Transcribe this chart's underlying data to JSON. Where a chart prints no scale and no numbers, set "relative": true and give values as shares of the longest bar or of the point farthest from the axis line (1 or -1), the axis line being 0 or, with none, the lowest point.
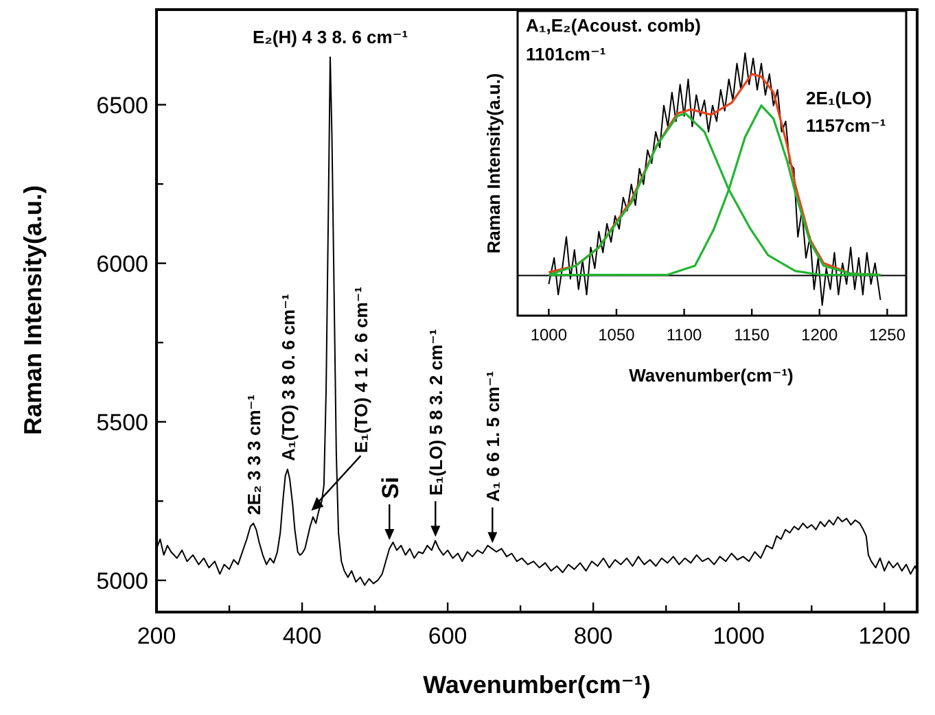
{
  "chart_data": [
    {
      "type": "line",
      "xlabel": "Wavenumber(cm⁻¹)",
      "ylabel": "Raman Intensity(a.u.)",
      "xlim": [
        200,
        1245
      ],
      "ylim": [
        4900,
        6800
      ],
      "xticks": [
        200,
        {
          "value": 300,
          "label": null
        },
        400,
        {
          "value": 500,
          "label": null
        },
        600,
        {
          "value": 700,
          "label": null
        },
        800,
        {
          "value": 900,
          "label": null
        },
        1000,
        {
          "value": 1100,
          "label": null
        },
        1200
      ],
      "yticks": [
        5000,
        {
          "value": 5250,
          "label": null
        },
        5500,
        {
          "value": 5750,
          "label": null
        },
        6000,
        {
          "value": 6250,
          "label": null
        },
        6500
      ],
      "annotations": [
        {
          "text": "E₂(H)  4 3 8. 6 cm⁻¹",
          "x": 438.6,
          "y": 6650
        },
        {
          "text": "2E₂ 3 3 3 cm⁻¹",
          "x": 333,
          "y": 5180
        },
        {
          "text": "A₁(TO)  3 8 0. 6 cm⁻¹",
          "x": 380.6,
          "y": 5350
        },
        {
          "text": "E₁(TO)  4 1 2. 6 cm⁻¹",
          "x": 412.6,
          "y": 5220
        },
        {
          "text": "Si",
          "x": 520,
          "y": 5110
        },
        {
          "text": "E₁(LO)  5 8 3. 2 cm⁻¹",
          "x": 583.2,
          "y": 5120
        },
        {
          "text": "A₁  6 6 1. 5 cm⁻¹",
          "x": 661.5,
          "y": 5100
        }
      ],
      "series": [
        {
          "color": "#000000",
          "x": [
            200,
            205,
            210,
            215,
            220,
            228,
            235,
            242,
            250,
            258,
            265,
            272,
            280,
            287,
            293,
            300,
            306,
            312,
            318,
            324,
            329,
            333,
            337,
            341,
            346,
            351,
            356,
            361,
            366,
            370,
            374,
            377,
            380,
            383,
            387,
            390,
            394,
            397,
            400,
            404,
            408,
            411,
            415,
            419,
            423,
            427,
            430,
            433,
            436,
            438.6,
            441,
            444,
            447,
            450,
            454,
            458,
            463,
            468,
            474,
            480,
            486,
            492,
            498,
            504,
            510,
            515,
            520,
            525,
            530,
            536,
            542,
            548,
            554,
            560,
            566,
            572,
            578,
            583,
            588,
            594,
            600,
            607,
            614,
            620,
            627,
            634,
            641,
            648,
            655,
            661,
            667,
            674,
            681,
            688,
            695,
            702,
            710,
            718,
            726,
            734,
            742,
            750,
            758,
            766,
            774,
            782,
            790,
            798,
            806,
            814,
            822,
            830,
            838,
            846,
            854,
            862,
            870,
            878,
            886,
            894,
            902,
            910,
            918,
            926,
            934,
            942,
            950,
            958,
            966,
            974,
            982,
            990,
            998,
            1006,
            1014,
            1022,
            1030,
            1038,
            1046,
            1052,
            1058,
            1064,
            1070,
            1076,
            1082,
            1088,
            1094,
            1100,
            1106,
            1112,
            1118,
            1124,
            1130,
            1136,
            1142,
            1148,
            1154,
            1160,
            1166,
            1171,
            1175,
            1178,
            1182,
            1188,
            1194,
            1200,
            1206,
            1212,
            1218,
            1224,
            1230,
            1236,
            1242,
            1245
          ],
          "values": [
            5100,
            5130,
            5080,
            5110,
            5090,
            5070,
            5095,
            5060,
            5080,
            5050,
            5070,
            5040,
            5060,
            5020,
            5050,
            5035,
            5065,
            5050,
            5090,
            5130,
            5170,
            5180,
            5160,
            5120,
            5080,
            5050,
            5070,
            5055,
            5090,
            5150,
            5260,
            5330,
            5350,
            5320,
            5240,
            5160,
            5090,
            5080,
            5085,
            5100,
            5140,
            5170,
            5200,
            5180,
            5220,
            5250,
            5300,
            5600,
            6150,
            6650,
            6400,
            5900,
            5400,
            5150,
            5060,
            5030,
            5010,
            5030,
            4995,
            5010,
            4985,
            5005,
            4990,
            5000,
            5020,
            5060,
            5100,
            5120,
            5095,
            5110,
            5080,
            5100,
            5070,
            5090,
            5085,
            5110,
            5095,
            5125,
            5100,
            5080,
            5095,
            5070,
            5085,
            5060,
            5090,
            5075,
            5095,
            5085,
            5110,
            5100,
            5090,
            5100,
            5075,
            5085,
            5060,
            5070,
            5050,
            5060,
            5040,
            5055,
            5030,
            5045,
            5025,
            5050,
            5035,
            5055,
            5030,
            5060,
            5045,
            5070,
            5040,
            5065,
            5050,
            5070,
            5045,
            5075,
            5050,
            5065,
            5045,
            5070,
            5055,
            5075,
            5050,
            5070,
            5055,
            5080,
            5060,
            5070,
            5050,
            5075,
            5060,
            5085,
            5065,
            5075,
            5060,
            5090,
            5070,
            5110,
            5100,
            5140,
            5130,
            5160,
            5150,
            5170,
            5160,
            5180,
            5165,
            5175,
            5160,
            5185,
            5170,
            5190,
            5175,
            5200,
            5185,
            5195,
            5175,
            5190,
            5180,
            5160,
            5140,
            5080,
            5060,
            5040,
            5070,
            5030,
            5060,
            5040,
            5055,
            5030,
            5050,
            5020,
            5045,
            5030
          ]
        }
      ]
    },
    {
      "type": "line",
      "relative": true,
      "xlabel": "Wavenumber(cm⁻¹)",
      "ylabel": "Raman Intensity(a.u.)",
      "xlim": [
        977,
        1264
      ],
      "xticks": [
        1000,
        1050,
        1100,
        1150,
        1200,
        1250
      ],
      "annotations": [
        "A₁,E₂(Acoust. comb)",
        "1101cm⁻¹",
        "2E₁(LO)",
        "1157cm⁻¹"
      ],
      "ref_lines": [
        {
          "axis": "y",
          "value": 0.153,
          "color": "#000000"
        }
      ],
      "series": [
        {
          "color": "#000000",
          "x": [
            1000,
            1004,
            1007,
            1010,
            1013,
            1016,
            1019,
            1022,
            1025,
            1028,
            1031,
            1034,
            1037,
            1040,
            1043,
            1046,
            1049,
            1052,
            1055,
            1058,
            1061,
            1064,
            1067,
            1070,
            1073,
            1076,
            1079,
            1082,
            1085,
            1088,
            1091,
            1094,
            1097,
            1100,
            1103,
            1106,
            1109,
            1112,
            1115,
            1118,
            1121,
            1124,
            1127,
            1130,
            1133,
            1136,
            1139,
            1142,
            1145,
            1148,
            1151,
            1154,
            1157,
            1160,
            1163,
            1166,
            1169,
            1172,
            1175,
            1178,
            1181,
            1184,
            1187,
            1190,
            1193,
            1196,
            1199,
            1202,
            1205,
            1208,
            1211,
            1214,
            1217,
            1220,
            1223,
            1226,
            1229,
            1232,
            1235,
            1238,
            1241,
            1245
          ],
          "values": [
            0.12,
            0.22,
            0.08,
            0.18,
            0.3,
            0.14,
            0.25,
            0.1,
            0.21,
            0.08,
            0.26,
            0.18,
            0.32,
            0.24,
            0.35,
            0.28,
            0.38,
            0.33,
            0.45,
            0.4,
            0.5,
            0.42,
            0.56,
            0.5,
            0.63,
            0.58,
            0.7,
            0.64,
            0.8,
            0.72,
            0.85,
            0.74,
            0.88,
            0.76,
            0.9,
            0.72,
            0.84,
            0.76,
            0.82,
            0.7,
            0.8,
            0.74,
            0.86,
            0.78,
            0.9,
            0.82,
            0.96,
            0.86,
            1.0,
            0.88,
            0.98,
            0.86,
            0.96,
            0.84,
            0.92,
            0.8,
            0.86,
            0.7,
            0.74,
            0.58,
            0.56,
            0.3,
            0.4,
            0.22,
            0.3,
            0.1,
            0.22,
            0.04,
            0.18,
            0.1,
            0.24,
            0.08,
            0.2,
            0.12,
            0.26,
            0.1,
            0.22,
            0.08,
            0.24,
            0.12,
            0.2,
            0.06
          ]
        },
        {
          "color": "#e8431c",
          "x": [
            1000,
            1020,
            1037,
            1061,
            1080,
            1095,
            1105,
            1120,
            1135,
            1150,
            1157,
            1166,
            1176,
            1182,
            1193,
            1203,
            1223,
            1245
          ],
          "values": [
            0.165,
            0.19,
            0.26,
            0.44,
            0.65,
            0.77,
            0.785,
            0.765,
            0.81,
            0.92,
            0.91,
            0.85,
            0.65,
            0.5,
            0.29,
            0.2,
            0.16,
            0.155
          ]
        },
        {
          "color": "#22b531",
          "x": [
            1000,
            1020,
            1037,
            1061,
            1080,
            1095,
            1101,
            1115,
            1133,
            1149,
            1162,
            1182,
            1200,
            1245
          ],
          "values": [
            0.155,
            0.19,
            0.26,
            0.43,
            0.65,
            0.76,
            0.77,
            0.7,
            0.48,
            0.33,
            0.23,
            0.17,
            0.156,
            0.155
          ]
        },
        {
          "color": "#22b531",
          "x": [
            1000,
            1088,
            1108,
            1122,
            1133,
            1145,
            1157,
            1166,
            1176,
            1182,
            1193,
            1203,
            1223,
            1245
          ],
          "values": [
            0.155,
            0.156,
            0.19,
            0.33,
            0.48,
            0.68,
            0.8,
            0.75,
            0.59,
            0.47,
            0.28,
            0.19,
            0.16,
            0.155
          ]
        }
      ]
    }
  ]
}
